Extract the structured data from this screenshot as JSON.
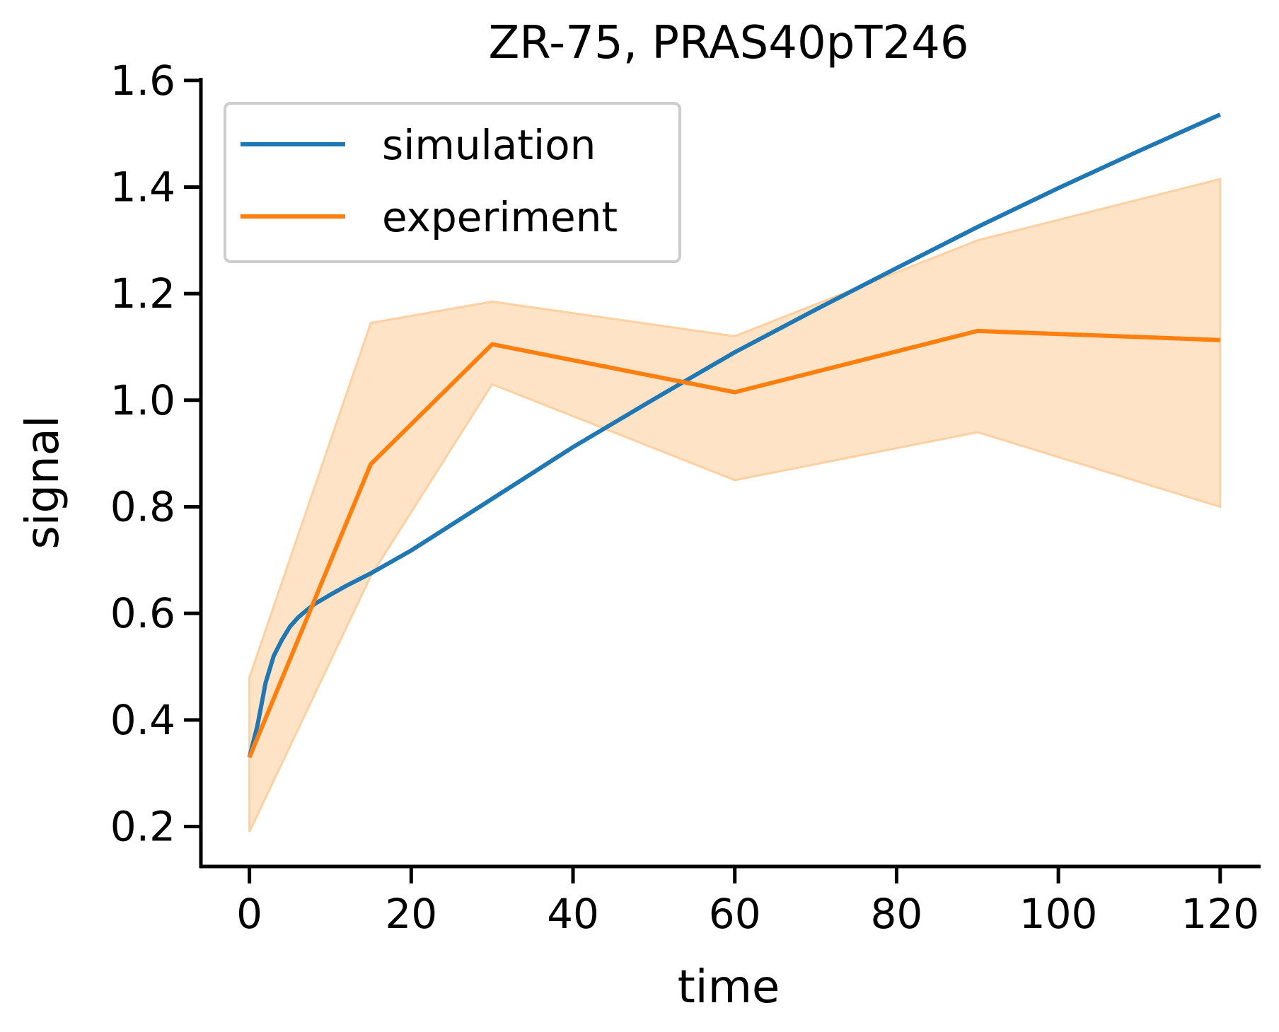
{
  "chart_data": {
    "type": "line",
    "title": "ZR-75, PRAS40pT246",
    "xlabel": "time",
    "ylabel": "signal",
    "xlim": [
      -6,
      125
    ],
    "ylim": [
      0.125,
      1.605
    ],
    "xticks": [
      0,
      20,
      40,
      60,
      80,
      100,
      120
    ],
    "yticks": [
      0.2,
      0.4,
      0.6,
      0.8,
      1.0,
      1.2,
      1.4,
      1.6
    ],
    "xtick_labels": [
      "0",
      "20",
      "40",
      "60",
      "80",
      "100",
      "120"
    ],
    "ytick_labels": [
      "0.2",
      "0.4",
      "0.6",
      "0.8",
      "1.0",
      "1.2",
      "1.4",
      "1.6"
    ],
    "grid": false,
    "legend_position": "upper-left",
    "series": [
      {
        "name": "simulation",
        "color": "#1f77b4",
        "x": [
          0,
          1,
          2,
          3,
          4,
          5,
          6,
          7,
          8,
          10,
          12,
          15,
          20,
          30,
          40,
          50,
          60,
          70,
          80,
          90,
          100,
          110,
          120
        ],
        "y": [
          0.33,
          0.39,
          0.47,
          0.52,
          0.55,
          0.575,
          0.592,
          0.605,
          0.617,
          0.635,
          0.652,
          0.675,
          0.718,
          0.815,
          0.912,
          1.002,
          1.09,
          1.17,
          1.248,
          1.325,
          1.398,
          1.468,
          1.536
        ]
      },
      {
        "name": "experiment",
        "color": "#ff7f0e",
        "band_color": "#fdd0a2",
        "x": [
          0,
          15,
          30,
          60,
          90,
          120
        ],
        "y": [
          0.33,
          0.88,
          1.105,
          1.015,
          1.13,
          1.113
        ],
        "lower": [
          0.19,
          0.67,
          1.03,
          0.85,
          0.94,
          0.8
        ],
        "upper": [
          0.48,
          1.145,
          1.185,
          1.12,
          1.3,
          1.415
        ]
      }
    ]
  }
}
